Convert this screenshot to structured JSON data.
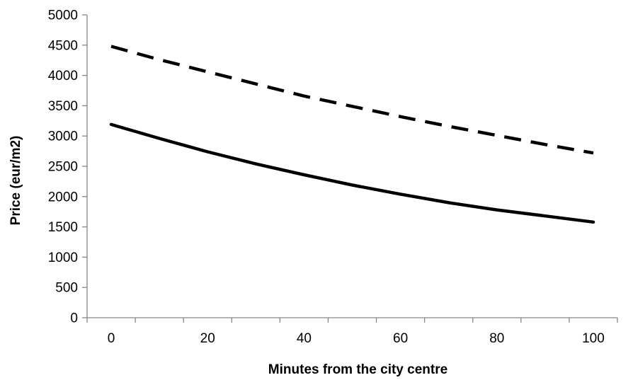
{
  "chart_data": {
    "type": "line",
    "xlabel": "Minutes from the city centre",
    "ylabel": "Price (eur/m2)",
    "xlim": [
      -5,
      105
    ],
    "ylim": [
      0,
      5000
    ],
    "x_ticks": [
      0,
      20,
      40,
      60,
      80,
      100
    ],
    "y_ticks": [
      0,
      500,
      1000,
      1500,
      2000,
      2500,
      3000,
      3500,
      4000,
      4500,
      5000
    ],
    "grid": false,
    "legend": "none",
    "series": [
      {
        "style": "dashed",
        "color": "#000000",
        "x": [
          0,
          10,
          20,
          30,
          40,
          50,
          60,
          70,
          80,
          90,
          100
        ],
        "y": [
          4480,
          4260,
          4060,
          3860,
          3660,
          3490,
          3320,
          3160,
          3010,
          2860,
          2720
        ]
      },
      {
        "style": "solid",
        "color": "#000000",
        "x": [
          0,
          10,
          20,
          30,
          40,
          50,
          60,
          70,
          80,
          90,
          100
        ],
        "y": [
          3190,
          2960,
          2740,
          2540,
          2360,
          2190,
          2040,
          1900,
          1780,
          1680,
          1580
        ]
      }
    ]
  }
}
